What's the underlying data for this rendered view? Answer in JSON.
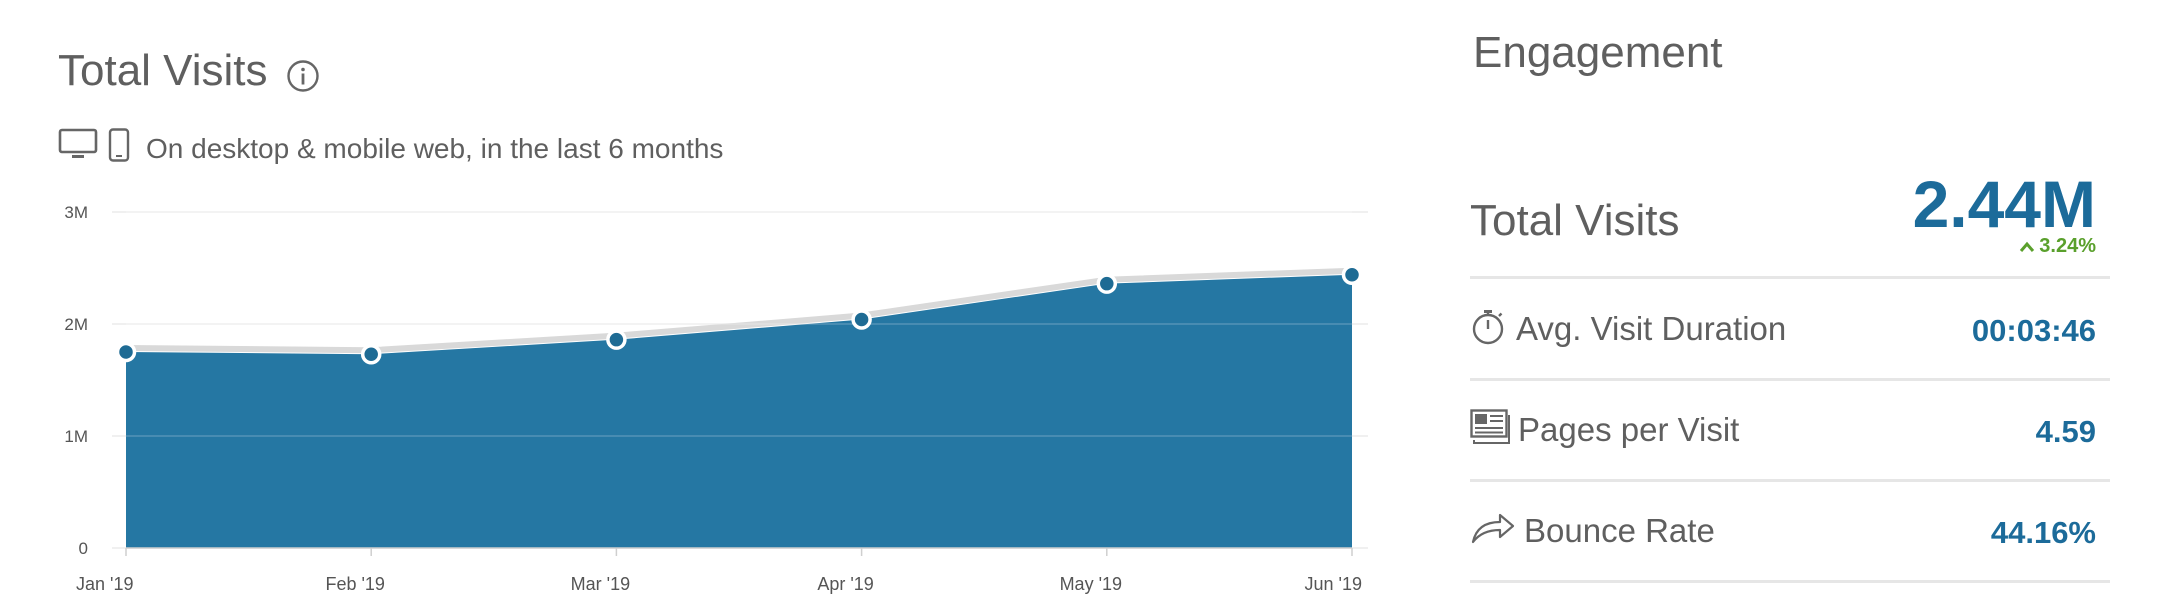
{
  "visits_panel": {
    "title": "Total Visits",
    "subtitle": "On desktop & mobile web, in the last 6 months",
    "icons": [
      "info-icon",
      "desktop-icon",
      "mobile-icon"
    ]
  },
  "chart_data": {
    "type": "area",
    "categories": [
      "Jan '19",
      "Feb '19",
      "Mar '19",
      "Apr '19",
      "May '19",
      "Jun '19"
    ],
    "series": [
      {
        "values": [
          1750000,
          1730000,
          1860000,
          2040000,
          2360000,
          2440000
        ]
      }
    ],
    "ylim": [
      0,
      3000000
    ],
    "yticks": [
      0,
      1000000,
      2000000,
      3000000
    ],
    "ytick_labels": [
      "0",
      "1M",
      "2M",
      "3M"
    ],
    "grid": true,
    "colors": {
      "area": "#2577a3",
      "marker_fill": "#1e6b94",
      "line": "#d9d9d9"
    }
  },
  "engagement": {
    "title": "Engagement",
    "total_visits": {
      "label": "Total Visits",
      "value": "2.44M",
      "change": "3.24%",
      "change_color": "#5aa02c"
    },
    "metrics": [
      {
        "label": "Avg. Visit Duration",
        "value": "00:03:46",
        "icon": "stopwatch-icon"
      },
      {
        "label": "Pages per Visit",
        "value": "4.59",
        "icon": "pages-icon"
      },
      {
        "label": "Bounce Rate",
        "value": "44.16%",
        "icon": "bounce-arrow-icon"
      }
    ],
    "value_color": "#1c6b9a"
  }
}
